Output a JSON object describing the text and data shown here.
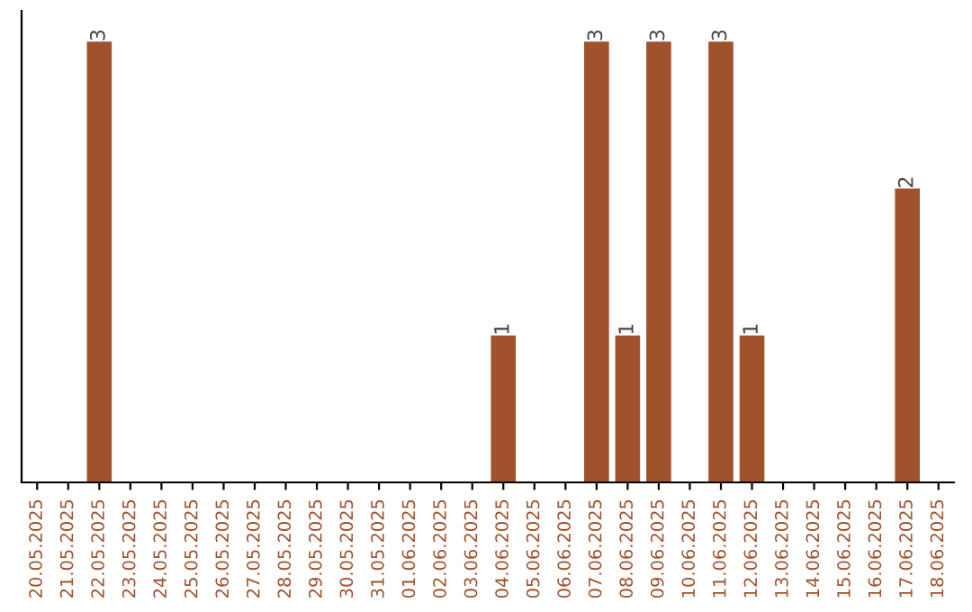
{
  "chart_data": {
    "type": "bar",
    "categories": [
      "20.05.2025",
      "21.05.2025",
      "22.05.2025",
      "23.05.2025",
      "24.05.2025",
      "25.05.2025",
      "26.05.2025",
      "27.05.2025",
      "28.05.2025",
      "29.05.2025",
      "30.05.2025",
      "31.05.2025",
      "01.06.2025",
      "02.06.2025",
      "03.06.2025",
      "04.06.2025",
      "05.06.2025",
      "06.06.2025",
      "07.06.2025",
      "08.06.2025",
      "09.06.2025",
      "10.06.2025",
      "11.06.2025",
      "12.06.2025",
      "13.06.2025",
      "14.06.2025",
      "15.06.2025",
      "16.06.2025",
      "17.06.2025",
      "18.06.2025"
    ],
    "values": [
      0,
      0,
      3,
      0,
      0,
      0,
      0,
      0,
      0,
      0,
      0,
      0,
      0,
      0,
      0,
      1,
      0,
      0,
      3,
      1,
      3,
      0,
      3,
      1,
      0,
      0,
      0,
      0,
      2,
      0
    ],
    "value_labels": [
      null,
      null,
      "3",
      null,
      null,
      null,
      null,
      null,
      null,
      null,
      null,
      null,
      null,
      null,
      null,
      "1",
      null,
      null,
      "3",
      "1",
      "3",
      null,
      "3",
      "1",
      null,
      null,
      null,
      null,
      "2",
      null
    ],
    "color": "#a0522d",
    "grid": false,
    "legend": false,
    "tick_labels": "x"
  }
}
